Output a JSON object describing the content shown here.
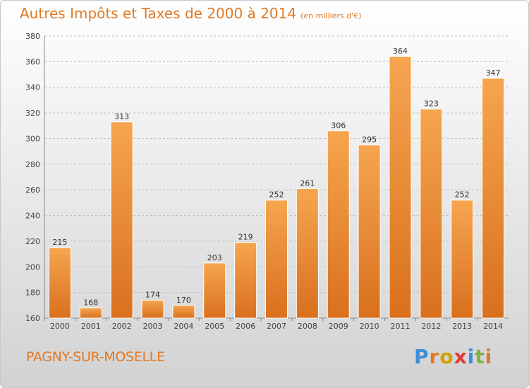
{
  "title": "Autres Impôts et Taxes de 2000 à 2014",
  "subtitle": "(en milliers d'€)",
  "city": "PAGNY-SUR-MOSELLE",
  "logo": {
    "text": "Proxiti",
    "letter_colors": [
      "#3b8fd6",
      "#e07a26",
      "#d4a000",
      "#e03a3a",
      "#3b8fd6",
      "#7cb342",
      "#e07a26"
    ]
  },
  "colors": {
    "bar_top": "#f6a54f",
    "bar_bottom": "#d9701e",
    "grid": "#c0c0c0",
    "accent": "#e07a26"
  },
  "chart_data": {
    "type": "bar",
    "title": "Autres Impôts et Taxes de 2000 à 2014",
    "subtitle": "(en milliers d'€)",
    "xlabel": "",
    "ylabel": "",
    "categories": [
      "2000",
      "2001",
      "2002",
      "2003",
      "2004",
      "2005",
      "2006",
      "2007",
      "2008",
      "2009",
      "2010",
      "2011",
      "2012",
      "2013",
      "2014"
    ],
    "values": [
      215,
      168,
      313,
      174,
      170,
      203,
      219,
      252,
      261,
      306,
      295,
      364,
      323,
      252,
      347
    ],
    "ylim": [
      160,
      380
    ],
    "yticks": [
      160,
      180,
      200,
      220,
      240,
      260,
      280,
      300,
      320,
      340,
      360,
      380
    ],
    "grid": true,
    "legend": "none"
  }
}
